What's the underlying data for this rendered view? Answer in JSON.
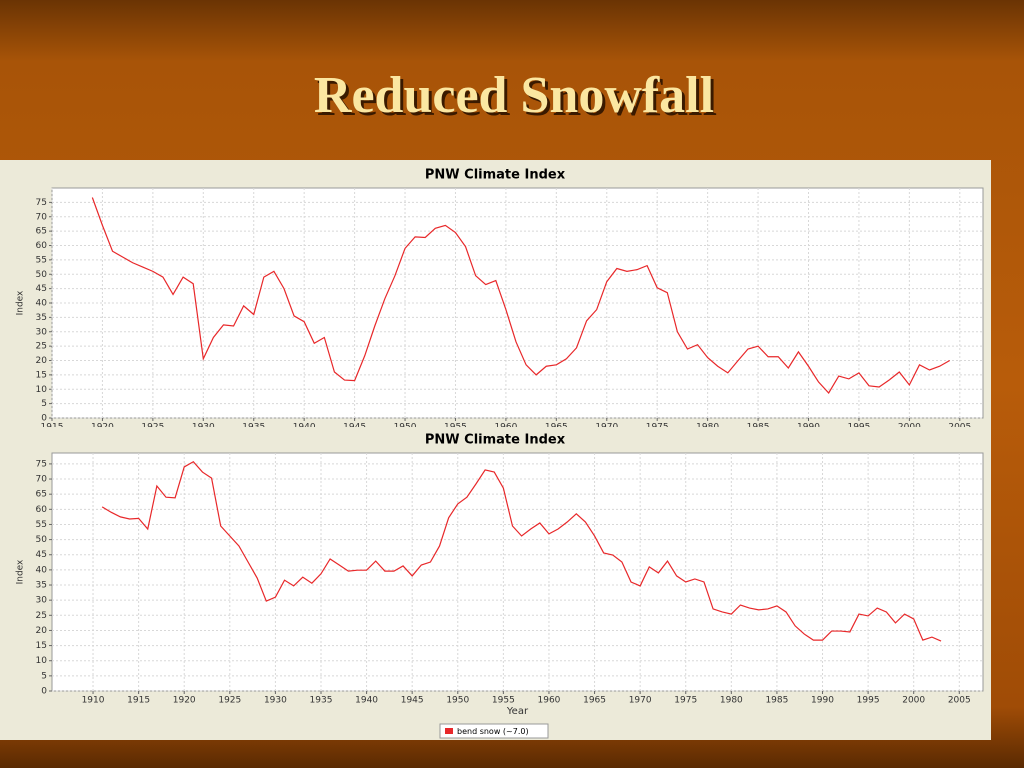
{
  "slide_title": "Reduced Snowfall",
  "chart_data": [
    {
      "type": "line",
      "title": "PNW Climate Index",
      "y_label": "Index",
      "x": [
        1919,
        1920,
        1921,
        1922,
        1923,
        1924,
        1925,
        1926,
        1927,
        1928,
        1929,
        1930,
        1931,
        1932,
        1933,
        1934,
        1935,
        1936,
        1937,
        1938,
        1939,
        1940,
        1941,
        1942,
        1943,
        1944,
        1945,
        1946,
        1947,
        1948,
        1949,
        1950,
        1951,
        1952,
        1953,
        1954,
        1955,
        1956,
        1957,
        1958,
        1959,
        1960,
        1961,
        1962,
        1963,
        1964,
        1965,
        1966,
        1967,
        1968,
        1969,
        1970,
        1971,
        1972,
        1973,
        1974,
        1975,
        1976,
        1977,
        1978,
        1979,
        1980,
        1981,
        1982,
        1983,
        1984,
        1985,
        1986,
        1987,
        1988,
        1989,
        1990,
        1991,
        1992,
        1993,
        1994,
        1995,
        1996,
        1997,
        1998,
        1999,
        2000,
        2001,
        2002,
        2003,
        2004
      ],
      "series": [
        {
          "color": "#e8282a",
          "values": [
            76.7,
            67,
            58,
            56,
            54,
            52.5,
            51,
            49,
            43,
            49,
            46.7,
            20.6,
            28,
            32.4,
            32,
            39,
            36,
            49,
            51,
            45,
            35.5,
            33.5,
            26,
            28,
            16,
            13.2,
            13,
            21.6,
            32,
            41.5,
            49.5,
            59,
            63,
            62.8,
            66,
            67,
            64.5,
            59.6,
            49.5,
            46.4,
            47.8,
            37.7,
            26.5,
            18.5,
            15,
            18,
            18.5,
            20.6,
            24.4,
            33.8,
            37.7,
            47.4,
            52,
            51,
            51.6,
            53,
            45.3,
            43.6,
            30,
            24,
            25.5,
            21,
            18,
            15.7,
            19.9,
            24,
            25,
            21.3,
            21.3,
            17.4,
            23,
            18,
            12.5,
            8.7,
            14.6,
            13.6,
            15.7,
            11.2,
            10.8,
            13.2,
            16,
            11.5,
            18.5,
            16.7,
            18,
            20
          ]
        }
      ],
      "xlim": [
        1915,
        2007.3
      ],
      "ylim": [
        0,
        80
      ],
      "xticks": [
        1915,
        1920,
        1925,
        1930,
        1935,
        1940,
        1945,
        1950,
        1955,
        1960,
        1965,
        1970,
        1975,
        1980,
        1985,
        1990,
        1995,
        2000,
        2005
      ],
      "yticks": [
        0,
        5,
        10,
        15,
        20,
        25,
        30,
        35,
        40,
        45,
        50,
        55,
        60,
        65,
        70,
        75
      ],
      "grid": true
    },
    {
      "type": "line",
      "title": "PNW Climate Index",
      "y_label": "Index",
      "x_label": "Year",
      "x": [
        1911,
        1912,
        1913,
        1914,
        1915,
        1916,
        1917,
        1918,
        1919,
        1920,
        1921,
        1922,
        1923,
        1924,
        1925,
        1926,
        1927,
        1928,
        1929,
        1930,
        1931,
        1932,
        1933,
        1934,
        1935,
        1936,
        1937,
        1938,
        1939,
        1940,
        1941,
        1942,
        1943,
        1944,
        1945,
        1946,
        1947,
        1948,
        1949,
        1950,
        1951,
        1952,
        1953,
        1954,
        1955,
        1956,
        1957,
        1958,
        1959,
        1960,
        1961,
        1962,
        1963,
        1964,
        1965,
        1966,
        1967,
        1968,
        1969,
        1970,
        1971,
        1972,
        1973,
        1974,
        1975,
        1976,
        1977,
        1978,
        1979,
        1980,
        1981,
        1982,
        1983,
        1984,
        1985,
        1986,
        1987,
        1988,
        1989,
        1990,
        1991,
        1992,
        1993,
        1994,
        1995,
        1996,
        1997,
        1998,
        1999,
        2000,
        2001,
        2002,
        2003
      ],
      "series": [
        {
          "name": "bend snow (~7.0)",
          "color": "#e8282a",
          "values": [
            60.8,
            59,
            57.5,
            56.8,
            57,
            53.5,
            67.7,
            64,
            63.8,
            74,
            75.7,
            72.3,
            70.3,
            54.5,
            51.2,
            47.9,
            42.6,
            37.3,
            29.7,
            31,
            36.6,
            34.7,
            37.6,
            35.6,
            38.7,
            43.6,
            41.6,
            39.6,
            39.9,
            39.9,
            42.9,
            39.6,
            39.6,
            41.3,
            38,
            41.6,
            42.6,
            47.9,
            57.2,
            61.8,
            64,
            68.4,
            73,
            72.3,
            67,
            54.5,
            51.2,
            53.5,
            55.5,
            51.9,
            53.5,
            55.8,
            58.5,
            55.8,
            51.2,
            45.6,
            44.9,
            42.6,
            36,
            34.7,
            41,
            39,
            42.9,
            38,
            36,
            37,
            36,
            27.1,
            26.1,
            25.4,
            28.4,
            27.4,
            26.8,
            27.1,
            28.1,
            26.1,
            21.5,
            18.8,
            16.8,
            16.8,
            19.8,
            19.8,
            19.5,
            25.4,
            24.8,
            27.4,
            26.1,
            22.5,
            25.4,
            23.8,
            16.8,
            17.8,
            16.5
          ]
        }
      ],
      "xlim": [
        1905.5,
        2007.6
      ],
      "ylim": [
        0,
        78.6
      ],
      "xticks": [
        1910,
        1915,
        1920,
        1925,
        1930,
        1935,
        1940,
        1945,
        1950,
        1955,
        1960,
        1965,
        1970,
        1975,
        1980,
        1985,
        1990,
        1995,
        2000,
        2005
      ],
      "yticks": [
        0,
        5,
        10,
        15,
        20,
        25,
        30,
        35,
        40,
        45,
        50,
        55,
        60,
        65,
        70,
        75
      ],
      "grid": true,
      "legend": "bottom"
    }
  ]
}
